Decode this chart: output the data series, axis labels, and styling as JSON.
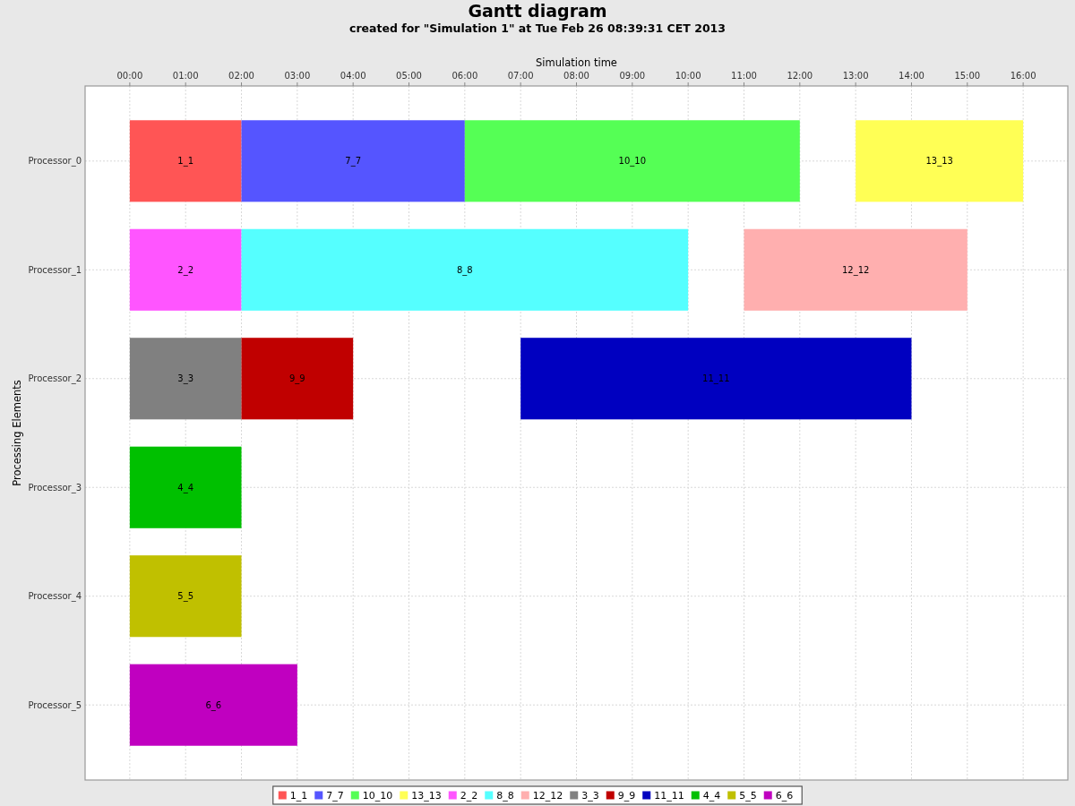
{
  "chart_data": {
    "type": "bar",
    "orientation": "horizontal",
    "title": "Gantt diagram",
    "subtitle": "created for \"Simulation 1\" at Tue Feb 26 08:39:31 CET 2013",
    "xlabel": "Simulation time",
    "ylabel": "Processing Elements",
    "categories": [
      "Processor_0",
      "Processor_1",
      "Processor_2",
      "Processor_3",
      "Processor_4",
      "Processor_5"
    ],
    "xlim": [
      -0.8,
      16.8
    ],
    "xticks": [
      {
        "value": 0,
        "label": "00:00"
      },
      {
        "value": 1,
        "label": "01:00"
      },
      {
        "value": 2,
        "label": "02:00"
      },
      {
        "value": 3,
        "label": "03:00"
      },
      {
        "value": 4,
        "label": "04:00"
      },
      {
        "value": 5,
        "label": "05:00"
      },
      {
        "value": 6,
        "label": "06:00"
      },
      {
        "value": 7,
        "label": "07:00"
      },
      {
        "value": 8,
        "label": "08:00"
      },
      {
        "value": 9,
        "label": "09:00"
      },
      {
        "value": 10,
        "label": "10:00"
      },
      {
        "value": 11,
        "label": "11:00"
      },
      {
        "value": 12,
        "label": "12:00"
      },
      {
        "value": 13,
        "label": "13:00"
      },
      {
        "value": 14,
        "label": "14:00"
      },
      {
        "value": 15,
        "label": "15:00"
      },
      {
        "value": 16,
        "label": "16:00"
      }
    ],
    "grid": true,
    "legend": "bottom",
    "series": [
      {
        "name": "1_1",
        "color": "#ff5555",
        "values": [
          2,
          null,
          null,
          null,
          null,
          null
        ],
        "base": [
          0,
          null,
          null,
          null,
          null,
          null
        ]
      },
      {
        "name": "7_7",
        "color": "#5555ff",
        "values": [
          4,
          null,
          null,
          null,
          null,
          null
        ],
        "base": [
          2,
          null,
          null,
          null,
          null,
          null
        ]
      },
      {
        "name": "10_10",
        "color": "#55ff55",
        "values": [
          6,
          null,
          null,
          null,
          null,
          null
        ],
        "base": [
          6,
          null,
          null,
          null,
          null,
          null
        ]
      },
      {
        "name": "13_13",
        "color": "#ffff55",
        "values": [
          3,
          null,
          null,
          null,
          null,
          null
        ],
        "base": [
          13,
          null,
          null,
          null,
          null,
          null
        ]
      },
      {
        "name": "2_2",
        "color": "#ff55ff",
        "values": [
          null,
          2,
          null,
          null,
          null,
          null
        ],
        "base": [
          null,
          0,
          null,
          null,
          null,
          null
        ]
      },
      {
        "name": "8_8",
        "color": "#55ffff",
        "values": [
          null,
          8,
          null,
          null,
          null,
          null
        ],
        "base": [
          null,
          2,
          null,
          null,
          null,
          null
        ]
      },
      {
        "name": "12_12",
        "color": "#ffafaf",
        "values": [
          null,
          4,
          null,
          null,
          null,
          null
        ],
        "base": [
          null,
          11,
          null,
          null,
          null,
          null
        ]
      },
      {
        "name": "3_3",
        "color": "#808080",
        "values": [
          null,
          null,
          2,
          null,
          null,
          null
        ],
        "base": [
          null,
          null,
          0,
          null,
          null,
          null
        ]
      },
      {
        "name": "9_9",
        "color": "#c00000",
        "values": [
          null,
          null,
          2,
          null,
          null,
          null
        ],
        "base": [
          null,
          null,
          2,
          null,
          null,
          null
        ]
      },
      {
        "name": "11_11",
        "color": "#0000c0",
        "values": [
          null,
          null,
          7,
          null,
          null,
          null
        ],
        "base": [
          null,
          null,
          7,
          null,
          null,
          null
        ]
      },
      {
        "name": "4_4",
        "color": "#00c000",
        "values": [
          null,
          null,
          null,
          2,
          null,
          null
        ],
        "base": [
          null,
          null,
          null,
          0,
          null,
          null
        ]
      },
      {
        "name": "5_5",
        "color": "#c0c000",
        "values": [
          null,
          null,
          null,
          null,
          2,
          null
        ],
        "base": [
          null,
          null,
          null,
          null,
          0,
          null
        ]
      },
      {
        "name": "6_6",
        "color": "#c000c0",
        "values": [
          null,
          null,
          null,
          null,
          null,
          3
        ],
        "base": [
          null,
          null,
          null,
          null,
          null,
          0
        ]
      }
    ]
  }
}
